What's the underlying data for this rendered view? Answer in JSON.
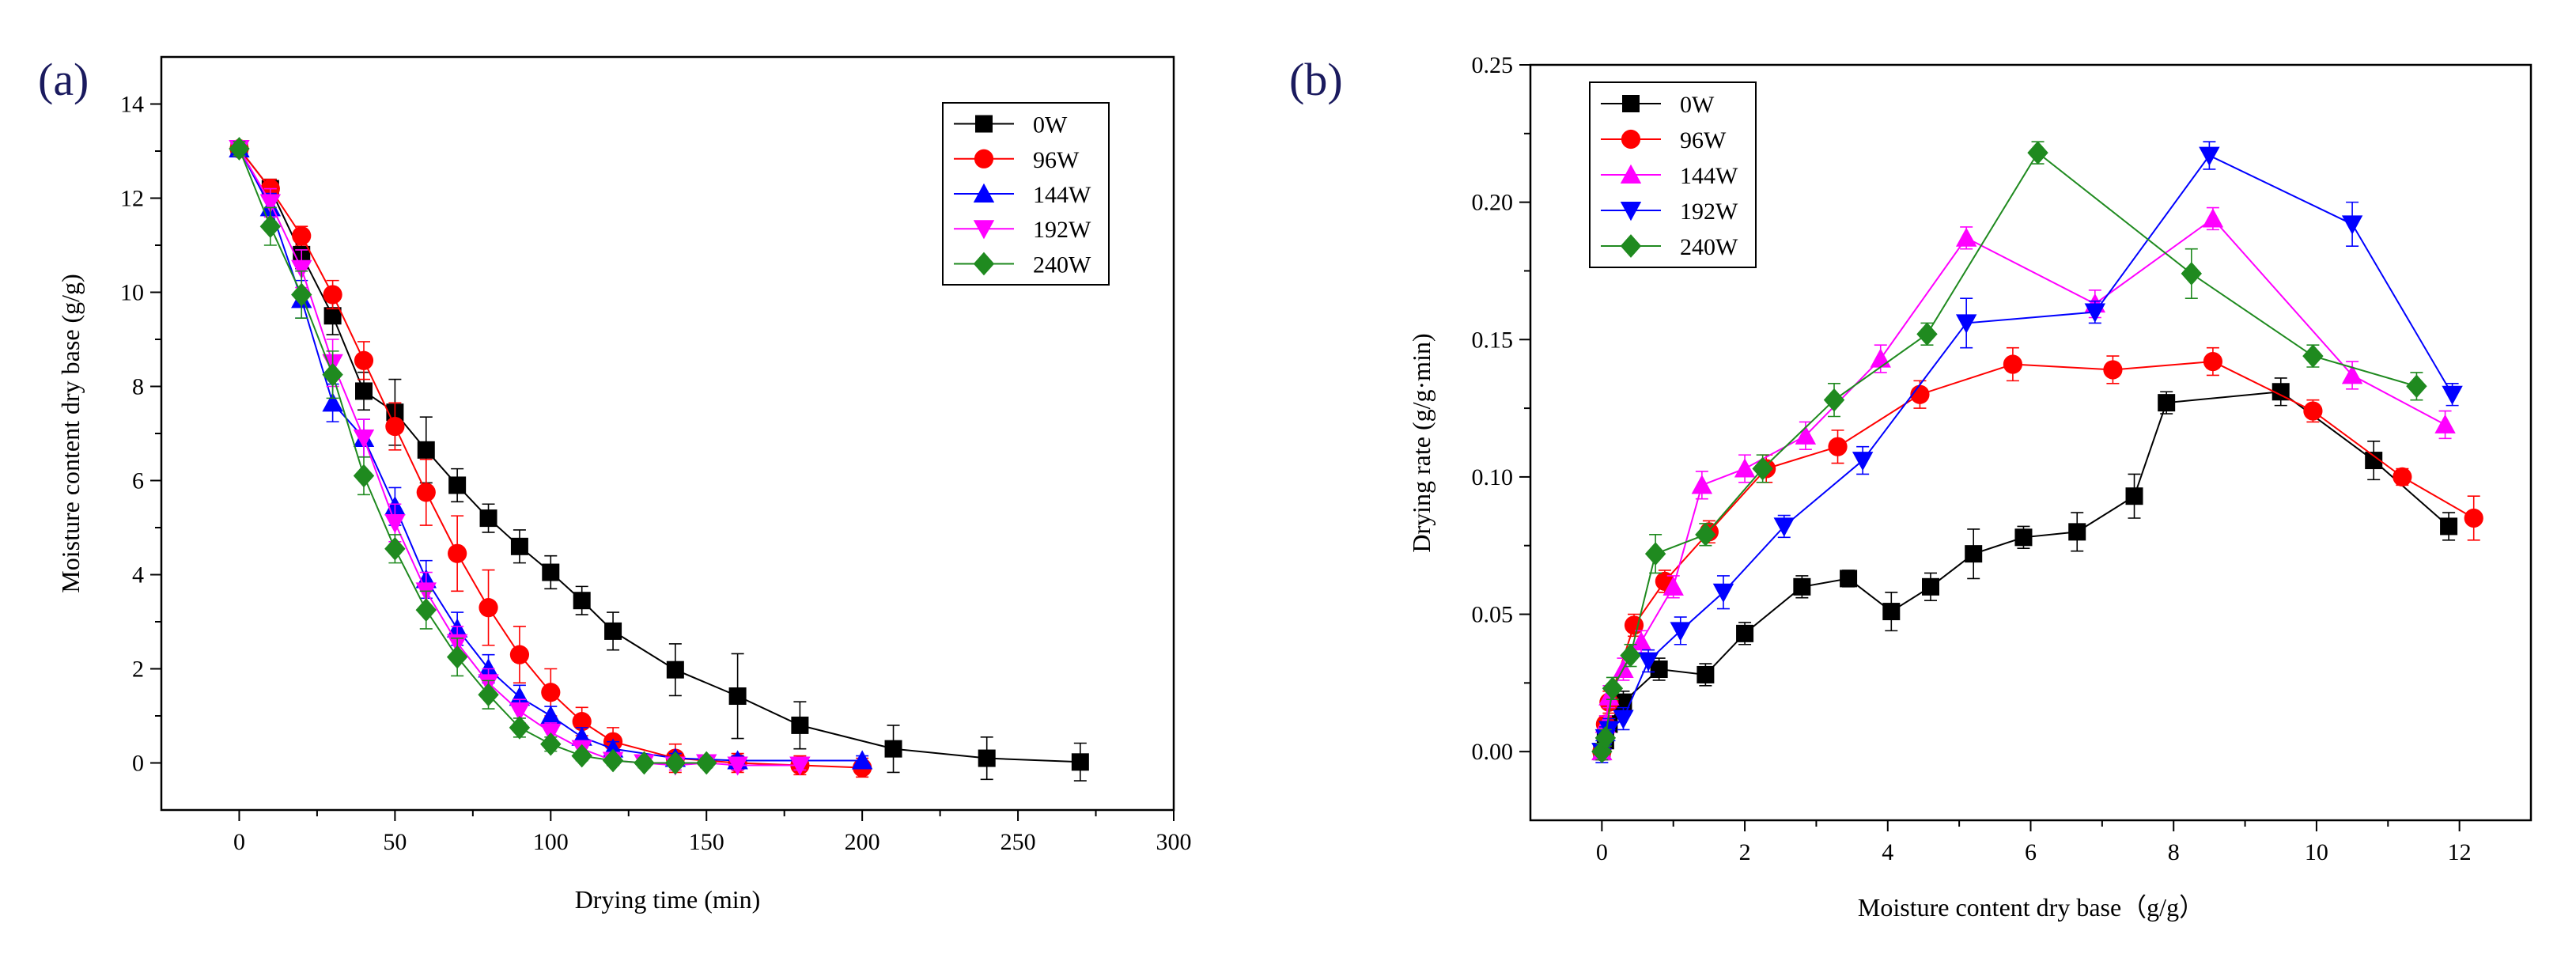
{
  "chart_data": [
    {
      "type": "line",
      "panel_label": "(a)",
      "title": "",
      "xlabel": "Drying time (min)",
      "ylabel": "Moisture content dry base (g/g)",
      "xlim": [
        -25,
        300
      ],
      "ylim": [
        -1,
        15
      ],
      "xticks": [
        0,
        50,
        100,
        150,
        200,
        250,
        300
      ],
      "yticks": [
        0,
        2,
        4,
        6,
        8,
        10,
        12,
        14
      ],
      "legend_position": "top-right",
      "series": [
        {
          "name": "0W",
          "color": "#000000",
          "marker": "square",
          "x": [
            0,
            10,
            20,
            30,
            40,
            50,
            60,
            70,
            80,
            90,
            100,
            110,
            120,
            140,
            160,
            180,
            210,
            240,
            270
          ],
          "y": [
            13.05,
            12.2,
            10.8,
            9.5,
            7.9,
            7.45,
            6.65,
            5.9,
            5.2,
            4.6,
            4.05,
            3.45,
            2.8,
            1.98,
            1.42,
            0.8,
            0.3,
            0.1,
            0.02
          ],
          "err": [
            0.15,
            0.2,
            0.3,
            0.4,
            0.4,
            0.7,
            0.7,
            0.35,
            0.3,
            0.35,
            0.35,
            0.3,
            0.4,
            0.55,
            0.9,
            0.5,
            0.5,
            0.45,
            0.4
          ]
        },
        {
          "name": "96W",
          "color": "#ff0000",
          "marker": "circle",
          "x": [
            0,
            10,
            20,
            30,
            40,
            50,
            60,
            70,
            80,
            90,
            100,
            110,
            120,
            140,
            160,
            180,
            200
          ],
          "y": [
            13.05,
            12.2,
            11.2,
            9.95,
            8.55,
            7.15,
            5.75,
            4.45,
            3.3,
            2.3,
            1.5,
            0.88,
            0.45,
            0.1,
            0.0,
            -0.05,
            -0.1
          ],
          "err": [
            0.15,
            0.2,
            0.2,
            0.3,
            0.4,
            0.5,
            0.7,
            0.8,
            0.8,
            0.6,
            0.5,
            0.3,
            0.3,
            0.3,
            0.2,
            0.2,
            0.2
          ]
        },
        {
          "name": "144W",
          "color": "#0000ff",
          "marker": "triangle-up",
          "x": [
            0,
            10,
            20,
            30,
            40,
            50,
            60,
            70,
            80,
            90,
            100,
            110,
            120,
            140,
            160,
            200
          ],
          "y": [
            13.05,
            11.8,
            9.85,
            7.65,
            6.9,
            5.45,
            3.9,
            2.85,
            2.0,
            1.4,
            1.0,
            0.55,
            0.3,
            0.1,
            0.05,
            0.05
          ],
          "err": [
            0.15,
            0.3,
            0.4,
            0.4,
            0.4,
            0.4,
            0.4,
            0.35,
            0.3,
            0.25,
            0.2,
            0.2,
            0.15,
            0.1,
            0.1,
            0.1
          ]
        },
        {
          "name": "192W",
          "color": "#ff00ff",
          "marker": "triangle-down",
          "x": [
            0,
            10,
            20,
            30,
            40,
            50,
            60,
            70,
            80,
            90,
            100,
            110,
            120,
            130,
            140,
            150,
            160,
            180
          ],
          "y": [
            13.05,
            11.9,
            10.5,
            8.5,
            6.9,
            5.1,
            3.65,
            2.55,
            1.7,
            1.1,
            0.65,
            0.3,
            0.05,
            0.0,
            -0.05,
            0.0,
            -0.05,
            -0.05
          ],
          "err": [
            0.15,
            0.3,
            0.4,
            0.5,
            0.4,
            0.4,
            0.4,
            0.35,
            0.3,
            0.25,
            0.2,
            0.15,
            0.1,
            0.1,
            0.1,
            0.1,
            0.1,
            0.1
          ]
        },
        {
          "name": "240W",
          "color": "#1f8a1f",
          "marker": "diamond",
          "x": [
            0,
            10,
            20,
            30,
            40,
            50,
            60,
            70,
            80,
            90,
            100,
            110,
            120,
            130,
            140,
            150
          ],
          "y": [
            13.05,
            11.4,
            9.95,
            8.25,
            6.1,
            4.55,
            3.25,
            2.25,
            1.45,
            0.75,
            0.4,
            0.15,
            0.05,
            0.0,
            0.0,
            0.0
          ],
          "err": [
            0.15,
            0.4,
            0.5,
            0.5,
            0.4,
            0.3,
            0.4,
            0.4,
            0.3,
            0.2,
            0.15,
            0.1,
            0.1,
            0.1,
            0.1,
            0.1
          ]
        }
      ]
    },
    {
      "type": "line",
      "panel_label": "(b)",
      "title": "",
      "xlabel": "Moisture content dry base（g/g）",
      "ylabel": "Drying rate (g/g·min)",
      "xlim": [
        -1,
        13
      ],
      "ylim": [
        -0.025,
        0.25
      ],
      "xticks": [
        0,
        2,
        4,
        6,
        8,
        10,
        12
      ],
      "yticks": [
        0.0,
        0.05,
        0.1,
        0.15,
        0.2,
        0.25
      ],
      "legend_position": "top-left",
      "series": [
        {
          "name": "0W",
          "color": "#000000",
          "marker": "square",
          "x": [
            0.0,
            0.05,
            0.1,
            0.3,
            0.8,
            1.45,
            2.0,
            2.8,
            3.45,
            4.05,
            4.6,
            5.2,
            5.9,
            6.65,
            7.45,
            7.9,
            9.5,
            10.8,
            11.85
          ],
          "y": [
            0.0,
            0.004,
            0.01,
            0.018,
            0.03,
            0.028,
            0.043,
            0.06,
            0.063,
            0.051,
            0.06,
            0.072,
            0.078,
            0.08,
            0.093,
            0.127,
            0.131,
            0.106,
            0.082
          ],
          "err": [
            0.003,
            0.003,
            0.003,
            0.004,
            0.004,
            0.004,
            0.004,
            0.004,
            0.003,
            0.007,
            0.005,
            0.009,
            0.004,
            0.007,
            0.008,
            0.004,
            0.005,
            0.007,
            0.005
          ]
        },
        {
          "name": "96W",
          "color": "#ff0000",
          "marker": "circle",
          "x": [
            0.0,
            0.05,
            0.1,
            0.45,
            0.88,
            1.5,
            2.3,
            3.3,
            4.45,
            5.75,
            7.15,
            8.55,
            9.95,
            11.2,
            12.2
          ],
          "y": [
            0.0,
            0.01,
            0.018,
            0.046,
            0.062,
            0.08,
            0.103,
            0.111,
            0.13,
            0.141,
            0.139,
            0.142,
            0.124,
            0.1,
            0.085
          ],
          "err": [
            0.003,
            0.003,
            0.004,
            0.004,
            0.004,
            0.004,
            0.005,
            0.006,
            0.005,
            0.006,
            0.005,
            0.005,
            0.004,
            0.003,
            0.008
          ]
        },
        {
          "name": "144W",
          "color": "#ff00ff",
          "marker": "triangle-up",
          "x": [
            0.0,
            0.05,
            0.1,
            0.3,
            0.55,
            1.0,
            1.4,
            2.0,
            2.85,
            3.9,
            5.1,
            6.9,
            8.55,
            10.5,
            11.8
          ],
          "y": [
            0.0,
            0.01,
            0.02,
            0.03,
            0.04,
            0.06,
            0.097,
            0.103,
            0.115,
            0.143,
            0.187,
            0.163,
            0.194,
            0.137,
            0.119
          ],
          "err": [
            0.003,
            0.003,
            0.004,
            0.004,
            0.004,
            0.004,
            0.005,
            0.005,
            0.005,
            0.005,
            0.004,
            0.005,
            0.004,
            0.005,
            0.005
          ]
        },
        {
          "name": "192W",
          "color": "#0000ff",
          "marker": "triangle-down",
          "x": [
            0.0,
            0.05,
            0.1,
            0.3,
            0.65,
            1.1,
            1.7,
            2.55,
            3.65,
            5.1,
            6.9,
            8.5,
            10.5,
            11.9
          ],
          "y": [
            0.0,
            0.005,
            0.008,
            0.012,
            0.033,
            0.044,
            0.058,
            0.082,
            0.106,
            0.156,
            0.16,
            0.217,
            0.192,
            0.13
          ],
          "err": [
            0.004,
            0.004,
            0.004,
            0.004,
            0.004,
            0.005,
            0.006,
            0.004,
            0.005,
            0.009,
            0.004,
            0.005,
            0.008,
            0.004
          ]
        },
        {
          "name": "240W",
          "color": "#1f8a1f",
          "marker": "diamond",
          "x": [
            0.0,
            0.05,
            0.15,
            0.4,
            0.75,
            1.45,
            2.25,
            3.25,
            4.55,
            6.1,
            8.25,
            9.95,
            11.4
          ],
          "y": [
            0.0,
            0.005,
            0.023,
            0.035,
            0.072,
            0.079,
            0.103,
            0.128,
            0.152,
            0.218,
            0.174,
            0.144,
            0.133
          ],
          "err": [
            0.003,
            0.003,
            0.004,
            0.004,
            0.007,
            0.004,
            0.005,
            0.006,
            0.004,
            0.004,
            0.009,
            0.004,
            0.005
          ]
        }
      ]
    }
  ]
}
